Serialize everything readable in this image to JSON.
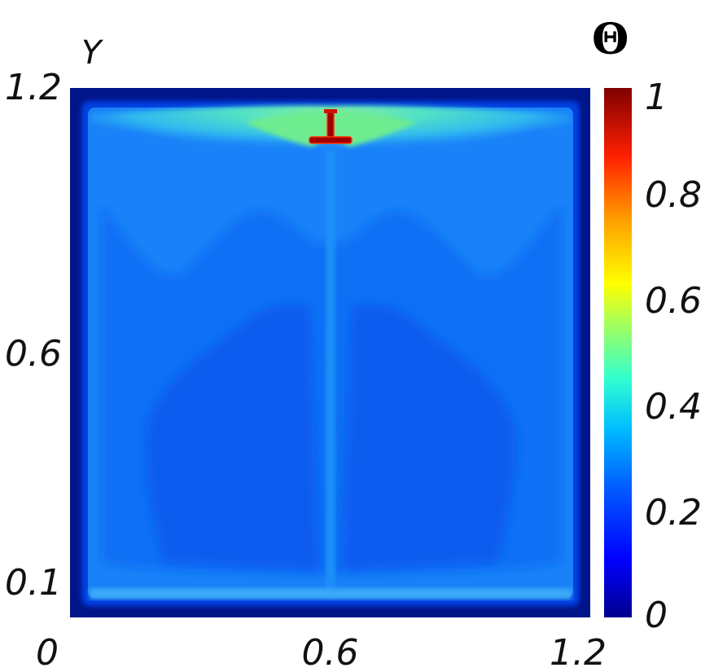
{
  "chart_data": {
    "type": "heatmap",
    "title": "",
    "xlabel": "",
    "ylabel": "Y",
    "xlim": [
      0,
      1.2
    ],
    "ylim": [
      0,
      1.2
    ],
    "x_ticks": [
      "0",
      "0.6",
      "1.2"
    ],
    "y_ticks": [
      "0.1",
      "0.6",
      "1.2"
    ],
    "colorbar": {
      "label": "Θ",
      "range": [
        0,
        1
      ],
      "ticks": [
        "0",
        "0.2",
        "0.4",
        "0.6",
        "0.8",
        "1"
      ],
      "colormap": "jet"
    },
    "field": {
      "background_value": 0.2,
      "wall_value": 0.03,
      "heat_source": {
        "x": 0.6,
        "y": 1.1,
        "value": 1.0
      }
    }
  },
  "colors": {
    "jet": [
      "#00008f",
      "#0000ff",
      "#0080ff",
      "#00ffff",
      "#80ff80",
      "#ffff00",
      "#ff8000",
      "#ff0000",
      "#800000"
    ],
    "outer_wall": "#00158a",
    "core_blue": "#0a5cf0",
    "mid_blue": "#0a70f5",
    "light_blue": "#1a88f8",
    "plume_cyan": "#3fc8f0",
    "plume_green": "#60e8a8"
  }
}
